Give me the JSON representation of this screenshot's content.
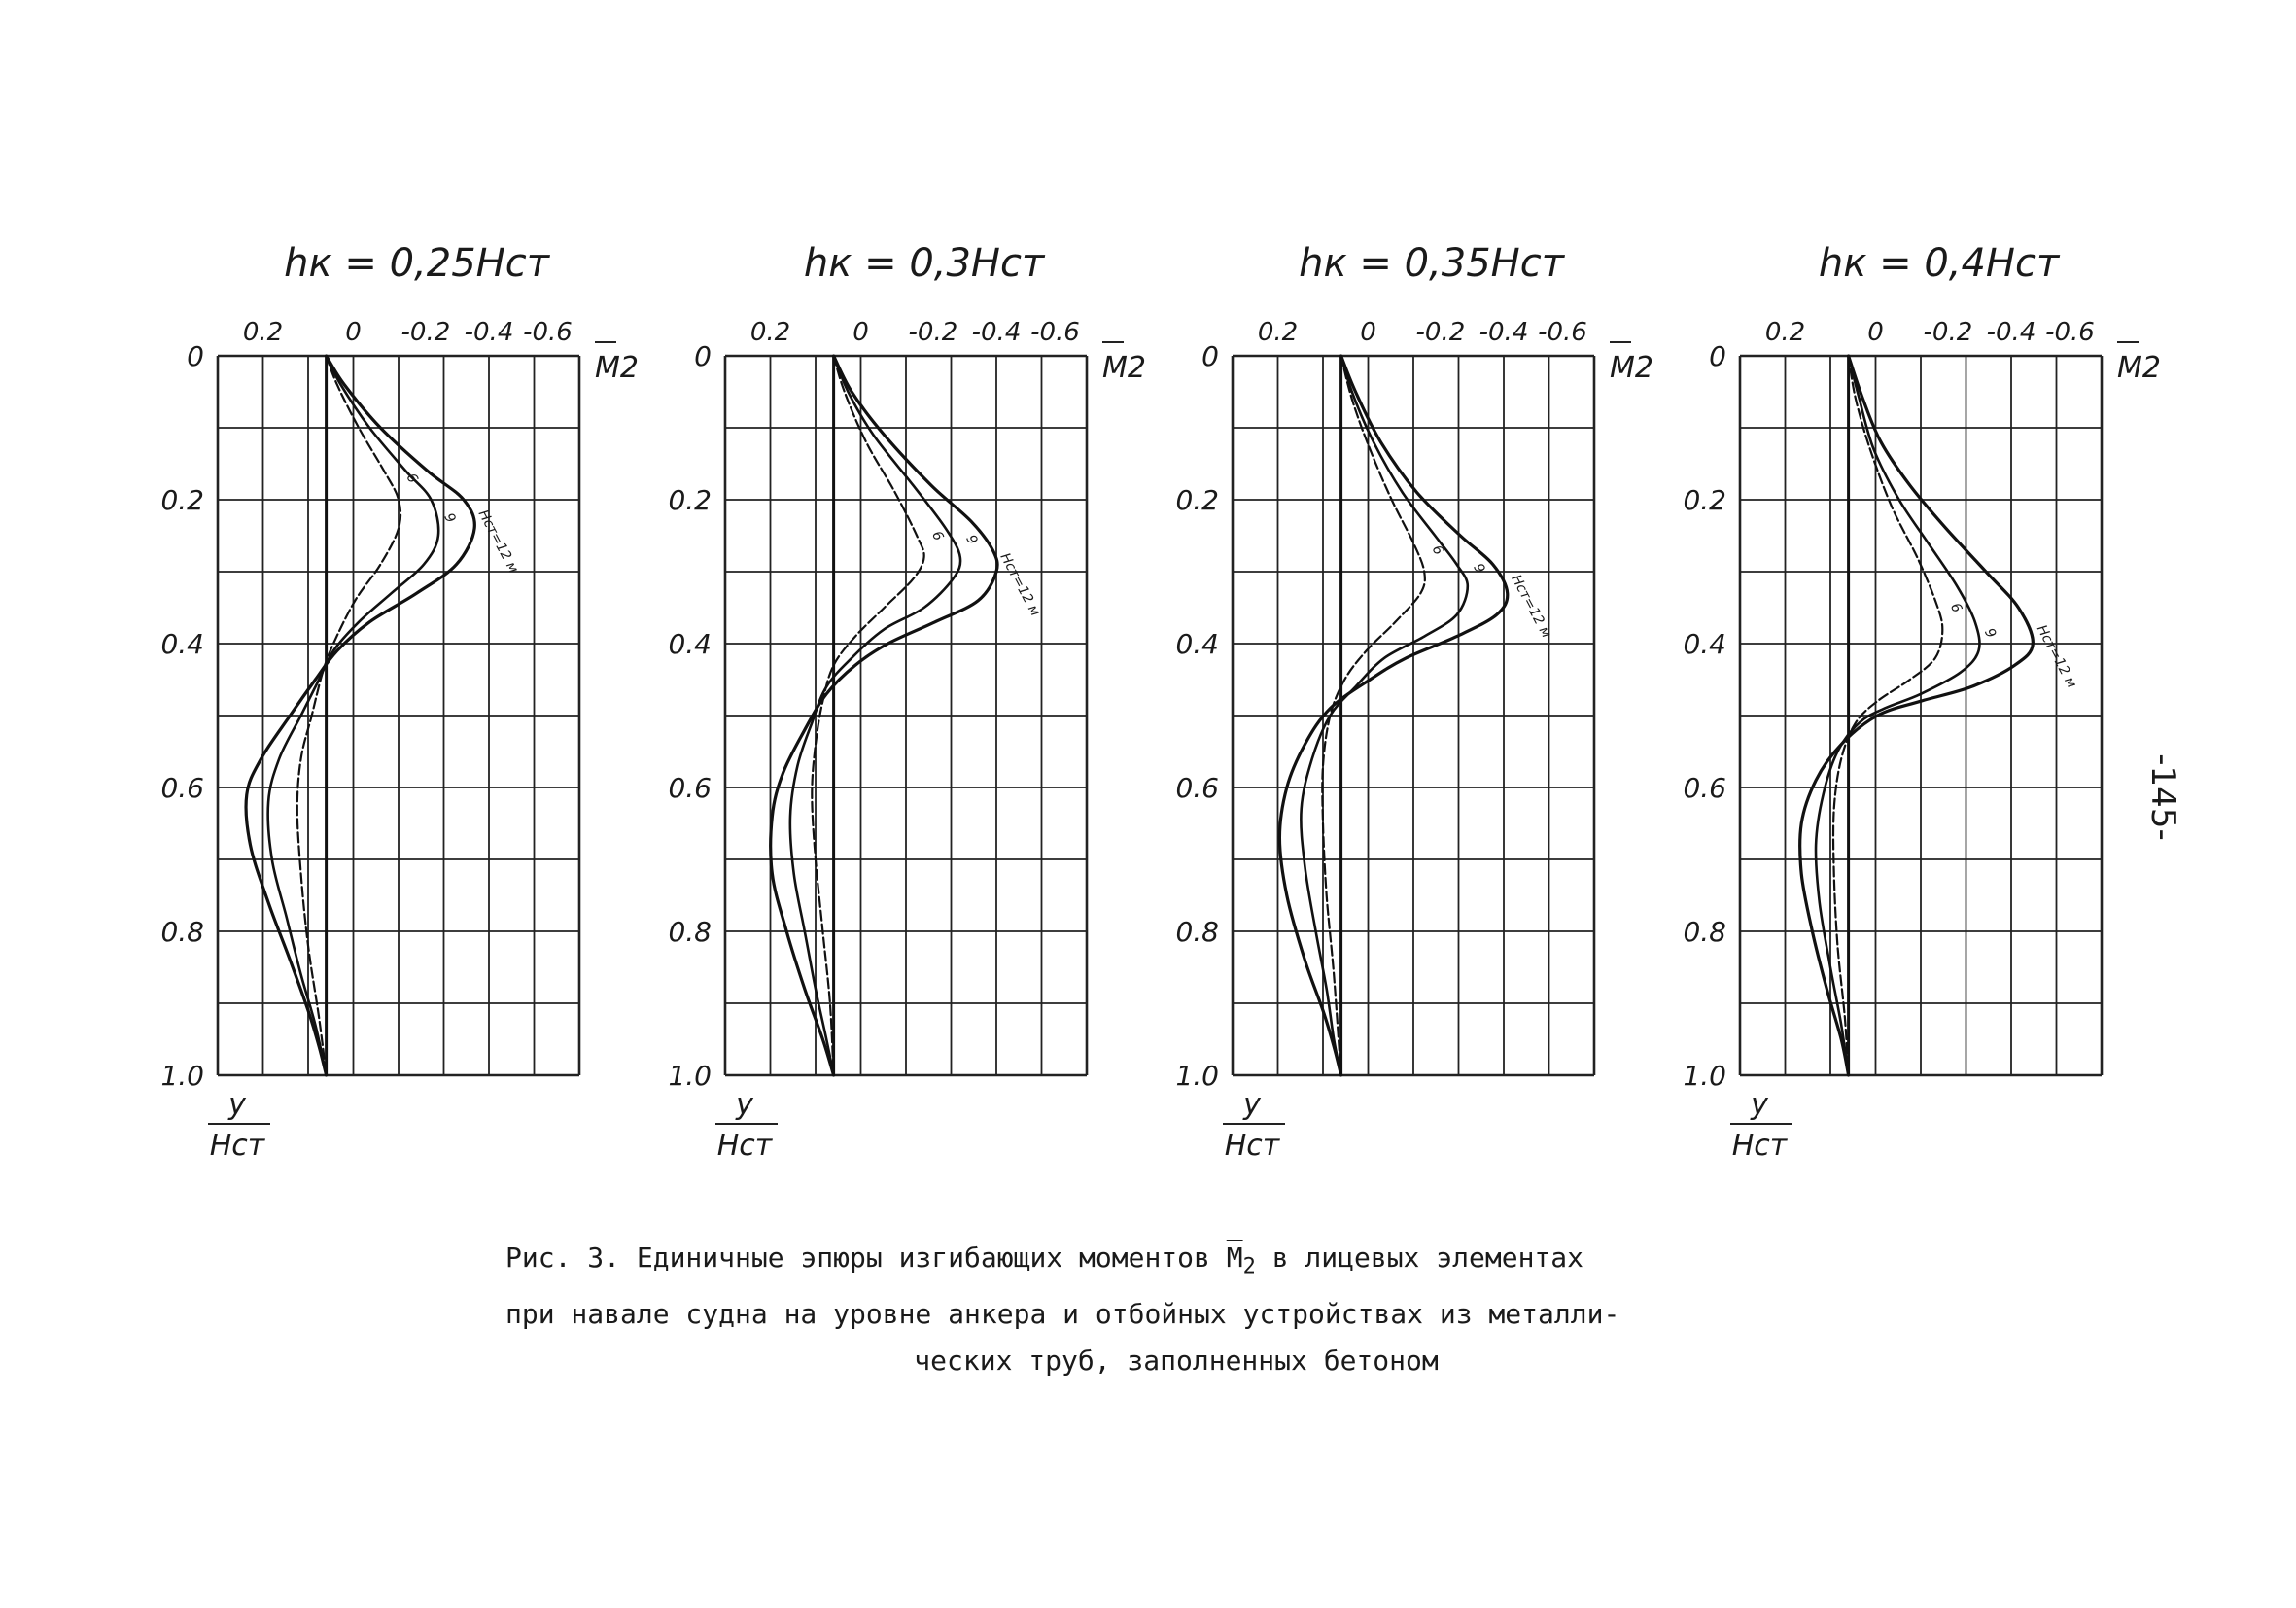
{
  "caption": {
    "line1_prefix": "Рис. 3. Единичные эпюры изгибающих моментов ",
    "line1_symbol": "M",
    "line1_sub": "2",
    "line1_suffix": " в лицевых элементах",
    "line2": "при навале судна на уровне анкера и отбойных устройствах из металли-",
    "line3": "ческих труб, заполненных бетоном"
  },
  "page_number": "-145-",
  "chart_data": [
    {
      "type": "line",
      "title": "hк = 0,25Hст",
      "x_ticks": [
        "0.2",
        "0",
        "-0.2",
        "-0.4",
        "-0.6"
      ],
      "y_ticks": [
        "0",
        "0.2",
        "0.4",
        "0.6",
        "0.8",
        "1.0"
      ],
      "x_axis_label": "M2",
      "y_axis_label_num": "y",
      "y_axis_label_den": "Hст",
      "xlim": [
        0.3,
        -0.7
      ],
      "ylim": [
        0,
        1.0
      ],
      "grid": true,
      "series": [
        {
          "name": "Hст=12 м",
          "points": [
            [
              0,
              0
            ],
            [
              -0.05,
              0.04
            ],
            [
              -0.15,
              0.1
            ],
            [
              -0.28,
              0.16
            ],
            [
              -0.38,
              0.2
            ],
            [
              -0.41,
              0.24
            ],
            [
              -0.36,
              0.29
            ],
            [
              -0.25,
              0.33
            ],
            [
              -0.12,
              0.37
            ],
            [
              -0.03,
              0.41
            ],
            [
              0.03,
              0.45
            ],
            [
              0.1,
              0.5
            ],
            [
              0.18,
              0.56
            ],
            [
              0.22,
              0.61
            ],
            [
              0.21,
              0.68
            ],
            [
              0.16,
              0.76
            ],
            [
              0.1,
              0.84
            ],
            [
              0.05,
              0.91
            ],
            [
              0.02,
              0.96
            ],
            [
              0,
              1.0
            ]
          ]
        },
        {
          "name": "9",
          "points": [
            [
              0,
              0
            ],
            [
              -0.04,
              0.04
            ],
            [
              -0.12,
              0.1
            ],
            [
              -0.22,
              0.16
            ],
            [
              -0.29,
              0.2
            ],
            [
              -0.31,
              0.25
            ],
            [
              -0.27,
              0.29
            ],
            [
              -0.18,
              0.33
            ],
            [
              -0.09,
              0.37
            ],
            [
              -0.02,
              0.41
            ],
            [
              0.02,
              0.45
            ],
            [
              0.07,
              0.5
            ],
            [
              0.13,
              0.56
            ],
            [
              0.16,
              0.62
            ],
            [
              0.15,
              0.7
            ],
            [
              0.11,
              0.78
            ],
            [
              0.07,
              0.86
            ],
            [
              0.03,
              0.93
            ],
            [
              0,
              1.0
            ]
          ]
        },
        {
          "name": "6",
          "points": [
            [
              0,
              0
            ],
            [
              -0.03,
              0.04
            ],
            [
              -0.09,
              0.1
            ],
            [
              -0.16,
              0.16
            ],
            [
              -0.2,
              0.2
            ],
            [
              -0.2,
              0.24
            ],
            [
              -0.15,
              0.29
            ],
            [
              -0.08,
              0.34
            ],
            [
              -0.02,
              0.4
            ],
            [
              0.01,
              0.44
            ],
            [
              0.04,
              0.5
            ],
            [
              0.07,
              0.56
            ],
            [
              0.08,
              0.63
            ],
            [
              0.07,
              0.72
            ],
            [
              0.05,
              0.82
            ],
            [
              0.02,
              0.92
            ],
            [
              0,
              1.0
            ]
          ]
        }
      ],
      "series_labels": [
        "Hст=12 м",
        "9",
        "6"
      ]
    },
    {
      "type": "line",
      "title": "hк = 0,3Hст",
      "x_ticks": [
        "0.2",
        "0",
        "-0.2",
        "-0.4",
        "-0.6"
      ],
      "y_ticks": [
        "0",
        "0.2",
        "0.4",
        "0.6",
        "0.8",
        "1.0"
      ],
      "x_axis_label": "M2",
      "y_axis_label_num": "y",
      "y_axis_label_den": "Hст",
      "xlim": [
        0.3,
        -0.7
      ],
      "ylim": [
        0,
        1.0
      ],
      "grid": true,
      "series": [
        {
          "name": "Hст=12 м",
          "points": [
            [
              0,
              0
            ],
            [
              -0.05,
              0.05
            ],
            [
              -0.14,
              0.11
            ],
            [
              -0.27,
              0.18
            ],
            [
              -0.38,
              0.23
            ],
            [
              -0.44,
              0.27
            ],
            [
              -0.45,
              0.3
            ],
            [
              -0.4,
              0.34
            ],
            [
              -0.28,
              0.37
            ],
            [
              -0.15,
              0.4
            ],
            [
              -0.06,
              0.43
            ],
            [
              0.02,
              0.47
            ],
            [
              0.08,
              0.52
            ],
            [
              0.14,
              0.58
            ],
            [
              0.17,
              0.64
            ],
            [
              0.17,
              0.72
            ],
            [
              0.13,
              0.8
            ],
            [
              0.08,
              0.88
            ],
            [
              0.03,
              0.95
            ],
            [
              0,
              1.0
            ]
          ]
        },
        {
          "name": "9",
          "points": [
            [
              0,
              0
            ],
            [
              -0.04,
              0.05
            ],
            [
              -0.11,
              0.11
            ],
            [
              -0.22,
              0.18
            ],
            [
              -0.31,
              0.24
            ],
            [
              -0.35,
              0.28
            ],
            [
              -0.33,
              0.31
            ],
            [
              -0.25,
              0.35
            ],
            [
              -0.14,
              0.38
            ],
            [
              -0.05,
              0.42
            ],
            [
              0.02,
              0.46
            ],
            [
              0.06,
              0.51
            ],
            [
              0.1,
              0.57
            ],
            [
              0.12,
              0.64
            ],
            [
              0.11,
              0.72
            ],
            [
              0.08,
              0.8
            ],
            [
              0.05,
              0.88
            ],
            [
              0.02,
              0.95
            ],
            [
              0,
              1.0
            ]
          ]
        },
        {
          "name": "6",
          "points": [
            [
              0,
              0
            ],
            [
              -0.03,
              0.05
            ],
            [
              -0.09,
              0.12
            ],
            [
              -0.17,
              0.19
            ],
            [
              -0.23,
              0.25
            ],
            [
              -0.25,
              0.28
            ],
            [
              -0.22,
              0.31
            ],
            [
              -0.14,
              0.35
            ],
            [
              -0.06,
              0.39
            ],
            [
              0,
              0.43
            ],
            [
              0.03,
              0.48
            ],
            [
              0.05,
              0.54
            ],
            [
              0.06,
              0.61
            ],
            [
              0.05,
              0.7
            ],
            [
              0.03,
              0.8
            ],
            [
              0.01,
              0.9
            ],
            [
              0,
              1.0
            ]
          ]
        }
      ],
      "series_labels": [
        "Hст=12 м",
        "9",
        "6"
      ]
    },
    {
      "type": "line",
      "title": "hк = 0,35Hст",
      "x_ticks": [
        "0.2",
        "0",
        "-0.2",
        "-0.4",
        "-0.6"
      ],
      "y_ticks": [
        "0",
        "0.2",
        "0.4",
        "0.6",
        "0.8",
        "1.0"
      ],
      "x_axis_label": "M2",
      "y_axis_label_num": "y",
      "y_axis_label_den": "Hст",
      "xlim": [
        0.3,
        -0.7
      ],
      "ylim": [
        0,
        1.0
      ],
      "grid": true,
      "series": [
        {
          "name": "Hст=12 м",
          "points": [
            [
              0,
              0
            ],
            [
              -0.04,
              0.05
            ],
            [
              -0.11,
              0.12
            ],
            [
              -0.21,
              0.19
            ],
            [
              -0.33,
              0.25
            ],
            [
              -0.42,
              0.29
            ],
            [
              -0.46,
              0.33
            ],
            [
              -0.43,
              0.36
            ],
            [
              -0.32,
              0.39
            ],
            [
              -0.18,
              0.42
            ],
            [
              -0.08,
              0.45
            ],
            [
              0.03,
              0.49
            ],
            [
              0.1,
              0.54
            ],
            [
              0.15,
              0.6
            ],
            [
              0.17,
              0.67
            ],
            [
              0.15,
              0.75
            ],
            [
              0.1,
              0.84
            ],
            [
              0.05,
              0.91
            ],
            [
              0.02,
              0.96
            ],
            [
              0,
              1.0
            ]
          ]
        },
        {
          "name": "9",
          "points": [
            [
              0,
              0
            ],
            [
              -0.03,
              0.05
            ],
            [
              -0.09,
              0.12
            ],
            [
              -0.17,
              0.19
            ],
            [
              -0.26,
              0.25
            ],
            [
              -0.32,
              0.29
            ],
            [
              -0.35,
              0.32
            ],
            [
              -0.32,
              0.36
            ],
            [
              -0.23,
              0.39
            ],
            [
              -0.12,
              0.42
            ],
            [
              -0.04,
              0.46
            ],
            [
              0.03,
              0.5
            ],
            [
              0.08,
              0.56
            ],
            [
              0.11,
              0.63
            ],
            [
              0.1,
              0.71
            ],
            [
              0.07,
              0.8
            ],
            [
              0.04,
              0.88
            ],
            [
              0.02,
              0.95
            ],
            [
              0,
              1.0
            ]
          ]
        },
        {
          "name": "6",
          "points": [
            [
              0,
              0
            ],
            [
              -0.03,
              0.06
            ],
            [
              -0.08,
              0.13
            ],
            [
              -0.14,
              0.2
            ],
            [
              -0.2,
              0.26
            ],
            [
              -0.23,
              0.3
            ],
            [
              -0.22,
              0.33
            ],
            [
              -0.15,
              0.37
            ],
            [
              -0.07,
              0.41
            ],
            [
              -0.01,
              0.45
            ],
            [
              0.03,
              0.5
            ],
            [
              0.05,
              0.57
            ],
            [
              0.05,
              0.65
            ],
            [
              0.04,
              0.75
            ],
            [
              0.02,
              0.86
            ],
            [
              0,
              1.0
            ]
          ]
        }
      ],
      "series_labels": [
        "Hст=12 м",
        "9",
        "6"
      ]
    },
    {
      "type": "line",
      "title": "hк = 0,4Hст",
      "x_ticks": [
        "0.2",
        "0",
        "-0.2",
        "-0.4",
        "-0.6"
      ],
      "y_ticks": [
        "0",
        "0.2",
        "0.4",
        "0.6",
        "0.8",
        "1.0"
      ],
      "x_axis_label": "M2",
      "y_axis_label_num": "y",
      "y_axis_label_den": "Hст",
      "xlim": [
        0.3,
        -0.7
      ],
      "ylim": [
        0,
        1.0
      ],
      "grid": true,
      "series": [
        {
          "name": "Hст=12 м",
          "points": [
            [
              0,
              0
            ],
            [
              -0.04,
              0.06
            ],
            [
              -0.09,
              0.12
            ],
            [
              -0.17,
              0.18
            ],
            [
              -0.27,
              0.24
            ],
            [
              -0.38,
              0.3
            ],
            [
              -0.47,
              0.35
            ],
            [
              -0.51,
              0.4
            ],
            [
              -0.46,
              0.43
            ],
            [
              -0.34,
              0.46
            ],
            [
              -0.2,
              0.48
            ],
            [
              -0.08,
              0.5
            ],
            [
              0.02,
              0.54
            ],
            [
              0.09,
              0.59
            ],
            [
              0.13,
              0.65
            ],
            [
              0.13,
              0.72
            ],
            [
              0.1,
              0.8
            ],
            [
              0.06,
              0.88
            ],
            [
              0.02,
              0.95
            ],
            [
              0,
              1.0
            ]
          ]
        },
        {
          "name": "9",
          "points": [
            [
              0,
              0
            ],
            [
              -0.03,
              0.06
            ],
            [
              -0.07,
              0.13
            ],
            [
              -0.14,
              0.2
            ],
            [
              -0.22,
              0.26
            ],
            [
              -0.3,
              0.32
            ],
            [
              -0.35,
              0.37
            ],
            [
              -0.36,
              0.41
            ],
            [
              -0.31,
              0.44
            ],
            [
              -0.2,
              0.47
            ],
            [
              -0.1,
              0.49
            ],
            [
              -0.03,
              0.51
            ],
            [
              0.03,
              0.55
            ],
            [
              0.07,
              0.61
            ],
            [
              0.09,
              0.68
            ],
            [
              0.08,
              0.76
            ],
            [
              0.05,
              0.85
            ],
            [
              0.02,
              0.93
            ],
            [
              0,
              1.0
            ]
          ]
        },
        {
          "name": "6",
          "points": [
            [
              0,
              0
            ],
            [
              -0.02,
              0.06
            ],
            [
              -0.06,
              0.13
            ],
            [
              -0.12,
              0.21
            ],
            [
              -0.19,
              0.28
            ],
            [
              -0.24,
              0.34
            ],
            [
              -0.26,
              0.38
            ],
            [
              -0.24,
              0.42
            ],
            [
              -0.17,
              0.45
            ],
            [
              -0.08,
              0.48
            ],
            [
              -0.02,
              0.51
            ],
            [
              0.02,
              0.56
            ],
            [
              0.04,
              0.63
            ],
            [
              0.04,
              0.72
            ],
            [
              0.03,
              0.82
            ],
            [
              0.01,
              0.92
            ],
            [
              0,
              1.0
            ]
          ]
        }
      ],
      "series_labels": [
        "Hст=12 м",
        "9",
        "6"
      ]
    }
  ]
}
